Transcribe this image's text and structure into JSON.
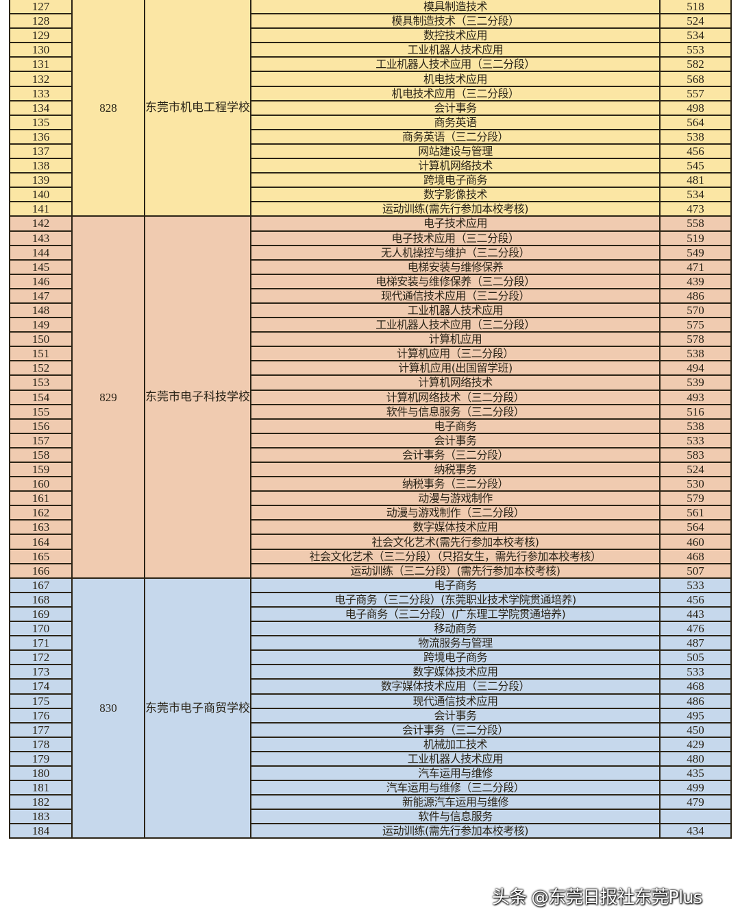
{
  "table": {
    "colors": {
      "group_0": "#fbe6a4",
      "group_1": "#f0cbb0",
      "group_2": "#c6d8ec",
      "border": "#2b2416"
    },
    "groups": [
      {
        "code": "828",
        "school": "东莞市机电工程学校",
        "rows": [
          {
            "no": "127",
            "major": "模具制造技术",
            "score": "518"
          },
          {
            "no": "128",
            "major": "模具制造技术（三二分段）",
            "score": "524"
          },
          {
            "no": "129",
            "major": "数控技术应用",
            "score": "534"
          },
          {
            "no": "130",
            "major": "工业机器人技术应用",
            "score": "553"
          },
          {
            "no": "131",
            "major": "工业机器人技术应用（三二分段）",
            "score": "582"
          },
          {
            "no": "132",
            "major": "机电技术应用",
            "score": "568"
          },
          {
            "no": "133",
            "major": "机电技术应用（三二分段）",
            "score": "557"
          },
          {
            "no": "134",
            "major": "会计事务",
            "score": "498"
          },
          {
            "no": "135",
            "major": "商务英语",
            "score": "564"
          },
          {
            "no": "136",
            "major": "商务英语（三二分段）",
            "score": "538"
          },
          {
            "no": "137",
            "major": "网站建设与管理",
            "score": "456"
          },
          {
            "no": "138",
            "major": "计算机网络技术",
            "score": "545"
          },
          {
            "no": "139",
            "major": "跨境电子商务",
            "score": "481"
          },
          {
            "no": "140",
            "major": "数字影像技术",
            "score": "534"
          },
          {
            "no": "141",
            "major": "运动训练(需先行参加本校考核)",
            "score": "473"
          }
        ]
      },
      {
        "code": "829",
        "school": "东莞市电子科技学校",
        "rows": [
          {
            "no": "142",
            "major": "电子技术应用",
            "score": "558"
          },
          {
            "no": "143",
            "major": "电子技术应用（三二分段）",
            "score": "519"
          },
          {
            "no": "144",
            "major": "无人机操控与维护（三二分段）",
            "score": "549"
          },
          {
            "no": "145",
            "major": "电梯安装与维修保养",
            "score": "471"
          },
          {
            "no": "146",
            "major": "电梯安装与维修保养（三二分段）",
            "score": "439"
          },
          {
            "no": "147",
            "major": "现代通信技术应用（三二分段）",
            "score": "486"
          },
          {
            "no": "148",
            "major": "工业机器人技术应用",
            "score": "570"
          },
          {
            "no": "149",
            "major": "工业机器人技术应用（三二分段）",
            "score": "575"
          },
          {
            "no": "150",
            "major": "计算机应用",
            "score": "578"
          },
          {
            "no": "151",
            "major": "计算机应用（三二分段）",
            "score": "538"
          },
          {
            "no": "152",
            "major": "计算机应用(出国留学班)",
            "score": "494"
          },
          {
            "no": "153",
            "major": "计算机网络技术",
            "score": "539"
          },
          {
            "no": "154",
            "major": "计算机网络技术（三二分段）",
            "score": "493"
          },
          {
            "no": "155",
            "major": "软件与信息服务（三二分段）",
            "score": "516"
          },
          {
            "no": "156",
            "major": "电子商务",
            "score": "538"
          },
          {
            "no": "157",
            "major": "会计事务",
            "score": "533"
          },
          {
            "no": "158",
            "major": "会计事务（三二分段）",
            "score": "583"
          },
          {
            "no": "159",
            "major": "纳税事务",
            "score": "524"
          },
          {
            "no": "160",
            "major": "纳税事务（三二分段）",
            "score": "530"
          },
          {
            "no": "161",
            "major": "动漫与游戏制作",
            "score": "579"
          },
          {
            "no": "162",
            "major": "动漫与游戏制作（三二分段）",
            "score": "561"
          },
          {
            "no": "163",
            "major": "数字媒体技术应用",
            "score": "564"
          },
          {
            "no": "164",
            "major": "社会文化艺术(需先行参加本校考核)",
            "score": "460"
          },
          {
            "no": "165",
            "major": "社会文化艺术（三二分段）（只招女生，需先行参加本校考核）",
            "score": "468"
          },
          {
            "no": "166",
            "major": "运动训练（三二分段）(需先行参加本校考核)",
            "score": "507"
          }
        ]
      },
      {
        "code": "830",
        "school": "东莞市电子商贸学校",
        "rows": [
          {
            "no": "167",
            "major": "电子商务",
            "score": "533"
          },
          {
            "no": "168",
            "major": "电子商务（三二分段）(东莞职业技术学院贯通培养)",
            "score": "456"
          },
          {
            "no": "169",
            "major": "电子商务（三二分段）(广东理工学院贯通培养)",
            "score": "443"
          },
          {
            "no": "170",
            "major": "移动商务",
            "score": "476"
          },
          {
            "no": "171",
            "major": "物流服务与管理",
            "score": "487"
          },
          {
            "no": "172",
            "major": "跨境电子商务",
            "score": "505"
          },
          {
            "no": "173",
            "major": "数字媒体技术应用",
            "score": "533"
          },
          {
            "no": "174",
            "major": "数字媒体技术应用（三二分段）",
            "score": "468"
          },
          {
            "no": "175",
            "major": "现代通信技术应用",
            "score": "486"
          },
          {
            "no": "176",
            "major": "会计事务",
            "score": "495"
          },
          {
            "no": "177",
            "major": "会计事务（三二分段）",
            "score": "450"
          },
          {
            "no": "178",
            "major": "机械加工技术",
            "score": "429"
          },
          {
            "no": "179",
            "major": "工业机器人技术应用",
            "score": "480"
          },
          {
            "no": "180",
            "major": "汽车运用与维修",
            "score": "435"
          },
          {
            "no": "181",
            "major": "汽车运用与维修（三二分段）",
            "score": "499"
          },
          {
            "no": "182",
            "major": "新能源汽车运用与维修",
            "score": "479"
          },
          {
            "no": "183",
            "major": "软件与信息服务",
            "score": ""
          },
          {
            "no": "184",
            "major": "运动训练(需先行参加本校考核)",
            "score": "434"
          }
        ]
      }
    ]
  },
  "watermark": {
    "text": "头条 @东莞日报社东莞Plus"
  }
}
